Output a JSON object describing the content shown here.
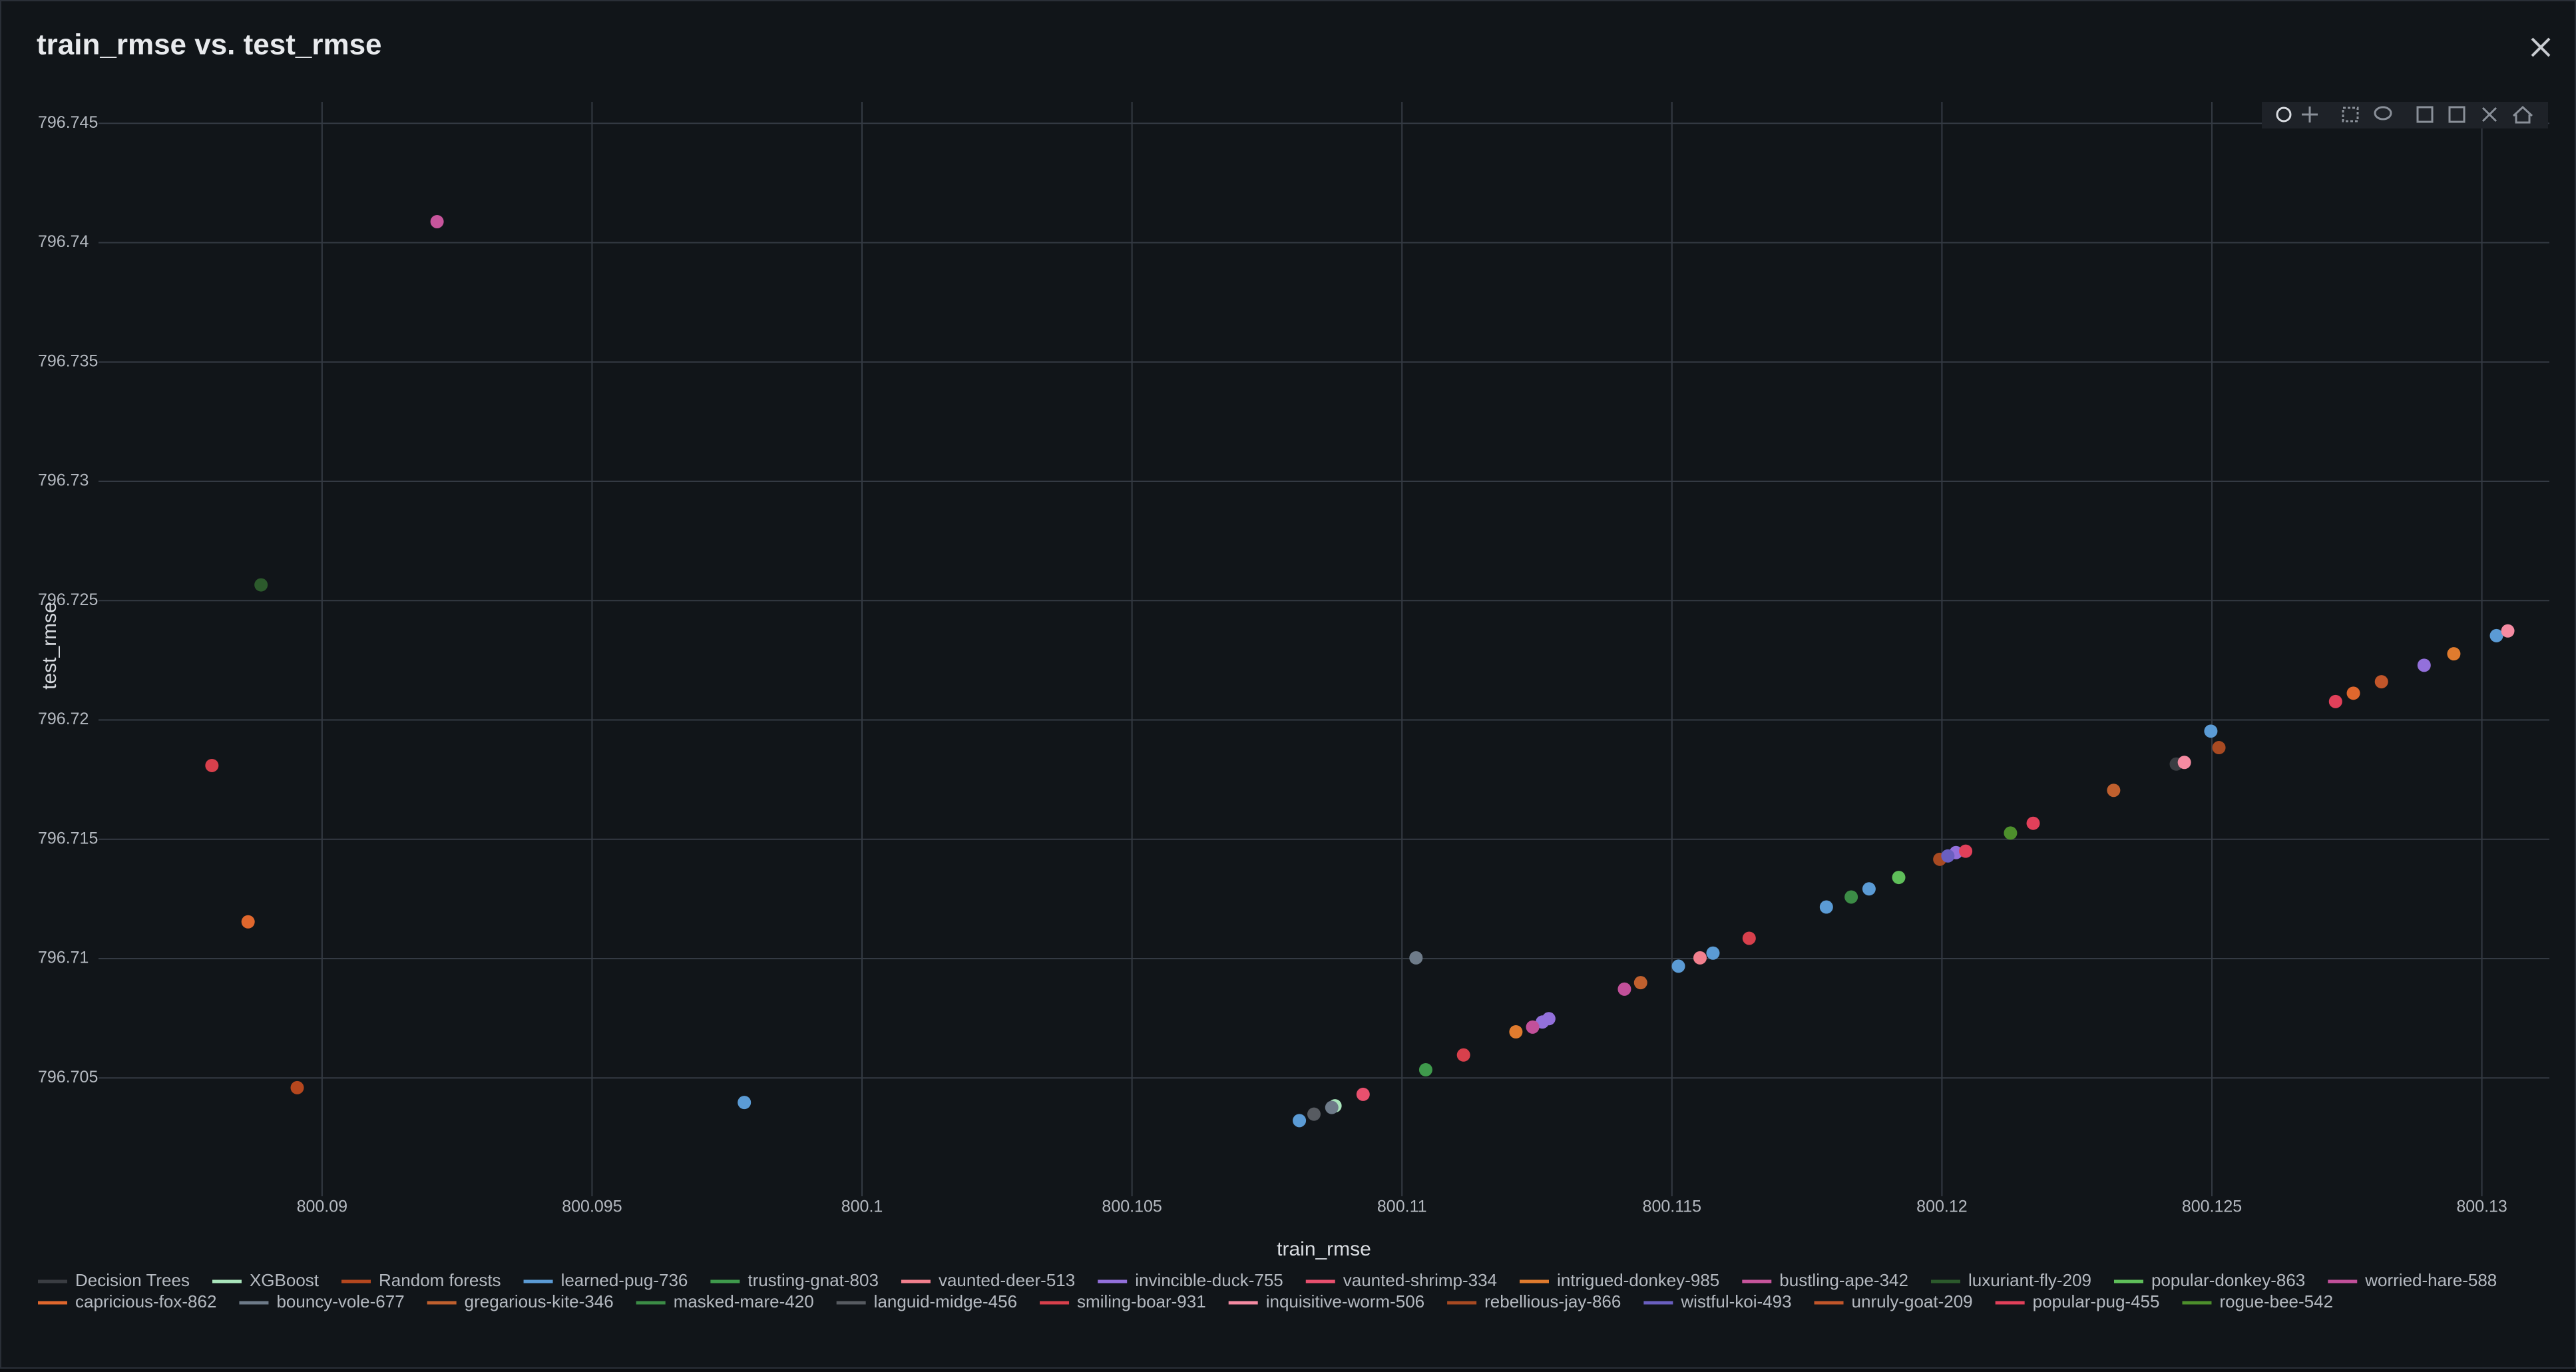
{
  "chart_data": {
    "type": "scatter",
    "title": "train_rmse vs. test_rmse",
    "x_label": "train_rmse",
    "y_label": "test_rmse",
    "xlim": [
      800.08586,
      800.13125
    ],
    "ylim": [
      796.70004,
      796.7459
    ],
    "xticks": [
      800.09,
      800.095,
      800.1,
      800.105,
      800.11,
      800.115,
      800.12,
      800.125,
      800.13
    ],
    "yticks": [
      796.705,
      796.71,
      796.715,
      796.72,
      796.725,
      796.73,
      796.735,
      796.74,
      796.745
    ],
    "grid": true,
    "legend": "bottom",
    "series": [
      {
        "name": "Decision Trees",
        "color": "#3a3d42",
        "x": [
          800.12434
        ],
        "values": [
          796.71815
        ]
      },
      {
        "name": "XGBoost",
        "color": "#a9e5bb",
        "x": [
          800.10876
        ],
        "values": [
          796.70383
        ]
      },
      {
        "name": "Random forests",
        "color": "#b5471e",
        "x": [
          800.08954
        ],
        "values": [
          796.70459
        ]
      },
      {
        "name": "learned-pug-736",
        "color": "#5b9bd5",
        "x": [
          800.09782,
          800.1081,
          800.11512,
          800.11576,
          800.11786,
          800.11865,
          800.12498,
          800.13027
        ],
        "values": [
          796.70397,
          796.70321,
          796.70968,
          796.71023,
          796.71216,
          796.71292,
          796.71953,
          796.72353
        ]
      },
      {
        "name": "trusting-gnat-803",
        "color": "#3f9a4c",
        "x": [
          800.11044
        ],
        "values": [
          796.70534
        ]
      },
      {
        "name": "vaunted-deer-513",
        "color": "#f2808e",
        "x": [
          800.11552
        ],
        "values": [
          796.71003
        ]
      },
      {
        "name": "invincible-duck-755",
        "color": "#9370db",
        "x": [
          800.1126,
          800.11272,
          800.12026,
          800.12893
        ],
        "values": [
          796.70734,
          796.70748,
          796.71444,
          796.72229
        ]
      },
      {
        "name": "vaunted-shrimp-334",
        "color": "#e8506e",
        "x": [
          800.10928
        ],
        "values": [
          796.70431
        ]
      },
      {
        "name": "intrigued-donkey-985",
        "color": "#e07b2e",
        "x": [
          800.11211,
          800.12948
        ],
        "values": [
          796.70693,
          796.72277
        ]
      },
      {
        "name": "bustling-ape-342",
        "color": "#c7559c",
        "x": [
          800.09213
        ],
        "values": [
          796.74088
        ]
      },
      {
        "name": "luxuriant-fly-209",
        "color": "#2c5a2c",
        "x": [
          800.08887
        ],
        "values": [
          796.72566
        ]
      },
      {
        "name": "popular-donkey-863",
        "color": "#5fbf5a",
        "x": [
          800.1192
        ],
        "values": [
          796.7134
        ]
      },
      {
        "name": "worried-hare-588",
        "color": "#c2509a",
        "x": [
          800.11242,
          800.11412
        ],
        "values": [
          796.70713,
          796.70872
        ]
      },
      {
        "name": "capricious-fox-862",
        "color": "#e0672d",
        "x": [
          800.08863,
          800.12762
        ],
        "values": [
          796.71154,
          796.72112
        ]
      },
      {
        "name": "bouncy-vole-677",
        "color": "#6e7b89",
        "x": [
          800.1087,
          800.11026
        ],
        "values": [
          796.70376,
          796.71003
        ]
      },
      {
        "name": "gregarious-kite-346",
        "color": "#c0602e",
        "x": [
          800.11442,
          800.12318
        ],
        "values": [
          796.70899,
          796.71705
        ]
      },
      {
        "name": "masked-mare-420",
        "color": "#3c8c46",
        "x": [
          800.11832
        ],
        "values": [
          796.71258
        ]
      },
      {
        "name": "languid-midge-456",
        "color": "#575b61",
        "x": [
          800.10837
        ],
        "values": [
          796.70348
        ]
      },
      {
        "name": "smiling-boar-931",
        "color": "#d8404c",
        "x": [
          800.08796,
          800.11114,
          800.11643
        ],
        "values": [
          796.71809,
          796.70596,
          796.71085
        ]
      },
      {
        "name": "inquisitive-worm-506",
        "color": "#f58ba2",
        "x": [
          800.12449,
          800.13048
        ],
        "values": [
          796.71822,
          796.72373
        ]
      },
      {
        "name": "rebellious-jay-866",
        "color": "#a84a22",
        "x": [
          800.11996,
          800.12513
        ],
        "values": [
          796.71416,
          796.71884
        ]
      },
      {
        "name": "wistful-koi-493",
        "color": "#6a5fc0",
        "x": [
          800.12011
        ],
        "values": [
          796.7143
        ]
      },
      {
        "name": "unruly-goat-209",
        "color": "#c2562a",
        "x": [
          800.12814
        ],
        "values": [
          796.7216
        ]
      },
      {
        "name": "popular-pug-455",
        "color": "#e2405a",
        "x": [
          800.12044,
          800.12169,
          800.12729
        ],
        "values": [
          796.7145,
          796.71567,
          796.72077
        ]
      },
      {
        "name": "rogue-bee-542",
        "color": "#4d8f2c",
        "x": [
          800.12127
        ],
        "values": [
          796.71526
        ]
      }
    ]
  }
}
